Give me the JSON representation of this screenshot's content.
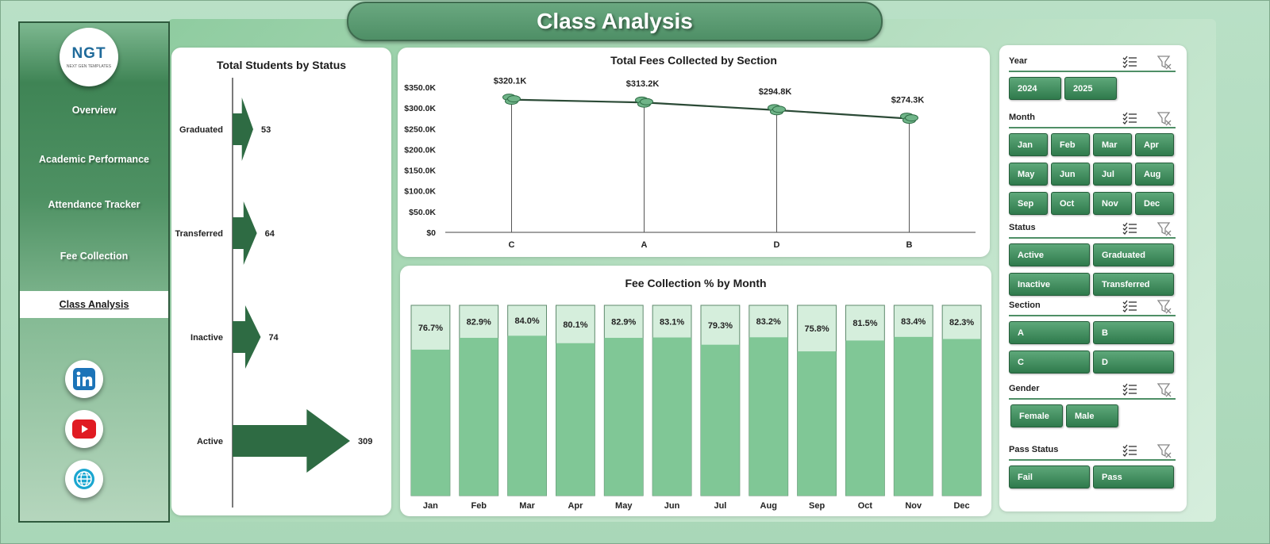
{
  "header": {
    "title": "Class Analysis"
  },
  "logo": {
    "text_a": "NGT",
    "tagline": "NEXT GEN TEMPLATES"
  },
  "sidebar": {
    "items": [
      {
        "label": "Overview",
        "active": false
      },
      {
        "label": "Academic Performance",
        "active": false
      },
      {
        "label": "Attendance Tracker",
        "active": false
      },
      {
        "label": "Fee Collection",
        "active": false
      },
      {
        "label": "Class Analysis",
        "active": true
      }
    ],
    "social": [
      "linkedin-icon",
      "youtube-icon",
      "globe-icon"
    ]
  },
  "colors": {
    "dark_green": "#2e6b43",
    "bar_fill": "#80c796",
    "bar_remainder": "#d5eedc",
    "line": "#2b4a36",
    "accent": "#4e8f66"
  },
  "chart_data": [
    {
      "type": "bar",
      "orientation": "horizontal",
      "title": "Total Students by Status",
      "categories": [
        "Graduated",
        "Transferred",
        "Inactive",
        "Active"
      ],
      "values": [
        53,
        64,
        74,
        309
      ],
      "data_labels": [
        "53",
        "64",
        "74",
        "309"
      ]
    },
    {
      "type": "line",
      "title": "Total Fees Collected by Section",
      "categories": [
        "C",
        "A",
        "D",
        "B"
      ],
      "values": [
        320100,
        313200,
        294800,
        274300
      ],
      "data_labels": [
        "$320.1K",
        "$313.2K",
        "$294.8K",
        "$274.3K"
      ],
      "ylim": [
        0,
        350000
      ],
      "yticks": [
        "$0",
        "$50.0K",
        "$100.0K",
        "$150.0K",
        "$200.0K",
        "$250.0K",
        "$300.0K",
        "$350.0K"
      ],
      "grid": false
    },
    {
      "type": "bar",
      "stacked_percent": true,
      "title": "Fee Collection % by Month",
      "categories": [
        "Jan",
        "Feb",
        "Mar",
        "Apr",
        "May",
        "Jun",
        "Jul",
        "Aug",
        "Sep",
        "Oct",
        "Nov",
        "Dec"
      ],
      "values": [
        76.7,
        82.9,
        84.0,
        80.1,
        82.9,
        83.1,
        79.3,
        83.2,
        75.8,
        81.5,
        83.4,
        82.3
      ],
      "data_labels": [
        "76.7%",
        "82.9%",
        "84.0%",
        "80.1%",
        "82.9%",
        "83.1%",
        "79.3%",
        "83.2%",
        "75.8%",
        "81.5%",
        "83.4%",
        "82.3%"
      ],
      "ylim": [
        0,
        100
      ]
    }
  ],
  "filters": [
    {
      "label": "Year",
      "options": [
        "2024",
        "2025"
      ]
    },
    {
      "label": "Month",
      "options": [
        "Jan",
        "Feb",
        "Mar",
        "Apr",
        "May",
        "Jun",
        "Jul",
        "Aug",
        "Sep",
        "Oct",
        "Nov",
        "Dec"
      ]
    },
    {
      "label": "Status",
      "options": [
        "Active",
        "Graduated",
        "Inactive",
        "Transferred"
      ]
    },
    {
      "label": "Section",
      "options": [
        "A",
        "B",
        "C",
        "D"
      ]
    },
    {
      "label": "Gender",
      "options": [
        "Female",
        "Male"
      ]
    },
    {
      "label": "Pass Status",
      "options": [
        "Fail",
        "Pass"
      ]
    }
  ]
}
